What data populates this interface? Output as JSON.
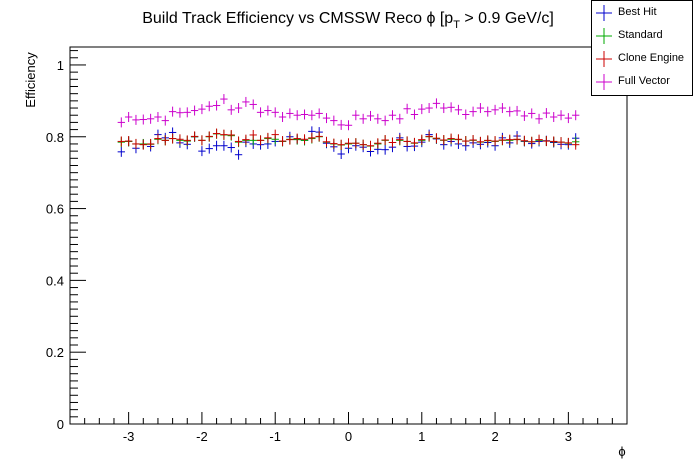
{
  "chart_data": {
    "type": "scatter",
    "title": "Build Track Efficiency vs CMSSW Reco ϕ [p",
    "title_sub": "T",
    "title_suffix": " > 0.9 GeV/c]",
    "xlabel": "ϕ",
    "ylabel": "Efficiency",
    "xlim": [
      -3.8,
      3.8
    ],
    "ylim": [
      0,
      1.05
    ],
    "x_ticks": [
      -3,
      -2,
      -1,
      0,
      1,
      2,
      3
    ],
    "x_tick_labels": [
      "-3",
      "-2",
      "-1",
      "0",
      "1",
      "2",
      "3"
    ],
    "y_ticks": [
      0,
      0.2,
      0.4,
      0.6,
      0.8,
      1
    ],
    "y_tick_labels": [
      "0",
      "0.2",
      "0.4",
      "0.6",
      "0.8",
      "1"
    ],
    "grid": false,
    "legend_position": "top-right",
    "x": [
      -3.1,
      -3.0,
      -2.9,
      -2.8,
      -2.7,
      -2.6,
      -2.5,
      -2.4,
      -2.3,
      -2.2,
      -2.1,
      -2.0,
      -1.9,
      -1.8,
      -1.7,
      -1.6,
      -1.5,
      -1.4,
      -1.3,
      -1.2,
      -1.1,
      -1.0,
      -0.9,
      -0.8,
      -0.7,
      -0.6,
      -0.5,
      -0.4,
      -0.3,
      -0.2,
      -0.1,
      0.0,
      0.1,
      0.2,
      0.3,
      0.4,
      0.5,
      0.6,
      0.7,
      0.8,
      0.9,
      1.0,
      1.1,
      1.2,
      1.3,
      1.4,
      1.5,
      1.6,
      1.7,
      1.8,
      1.9,
      2.0,
      2.1,
      2.2,
      2.3,
      2.4,
      2.5,
      2.6,
      2.7,
      2.8,
      2.9,
      3.0,
      3.1
    ],
    "series": [
      {
        "name": "Best Hit",
        "color": "#0000cc",
        "values": [
          0.758,
          0.787,
          0.768,
          0.779,
          0.773,
          0.806,
          0.797,
          0.812,
          0.783,
          0.779,
          0.8,
          0.76,
          0.767,
          0.775,
          0.775,
          0.77,
          0.75,
          0.785,
          0.78,
          0.778,
          0.78,
          0.787,
          0.787,
          0.8,
          0.793,
          0.79,
          0.815,
          0.813,
          0.782,
          0.772,
          0.752,
          0.768,
          0.775,
          0.771,
          0.759,
          0.765,
          0.764,
          0.771,
          0.797,
          0.773,
          0.774,
          0.785,
          0.806,
          0.794,
          0.778,
          0.787,
          0.78,
          0.775,
          0.783,
          0.779,
          0.784,
          0.775,
          0.797,
          0.783,
          0.802,
          0.787,
          0.781,
          0.787,
          0.789,
          0.784,
          0.779,
          0.778,
          0.796
        ]
      },
      {
        "name": "Standard",
        "color": "#00aa00",
        "values": [
          0.785,
          0.787,
          0.78,
          0.78,
          0.779,
          0.793,
          0.79,
          0.795,
          0.79,
          0.788,
          0.8,
          0.79,
          0.8,
          0.808,
          0.805,
          0.803,
          0.785,
          0.79,
          0.79,
          0.79,
          0.795,
          0.793,
          0.787,
          0.793,
          0.792,
          0.79,
          0.795,
          0.8,
          0.785,
          0.78,
          0.777,
          0.78,
          0.782,
          0.778,
          0.774,
          0.78,
          0.79,
          0.784,
          0.79,
          0.787,
          0.782,
          0.79,
          0.8,
          0.795,
          0.79,
          0.793,
          0.792,
          0.788,
          0.79,
          0.785,
          0.789,
          0.787,
          0.79,
          0.79,
          0.792,
          0.788,
          0.786,
          0.79,
          0.788,
          0.786,
          0.785,
          0.782,
          0.786
        ]
      },
      {
        "name": "Clone Engine",
        "color": "#cc0000",
        "values": [
          0.787,
          0.788,
          0.78,
          0.778,
          0.78,
          0.795,
          0.79,
          0.795,
          0.793,
          0.79,
          0.801,
          0.79,
          0.801,
          0.809,
          0.806,
          0.805,
          0.787,
          0.792,
          0.805,
          0.79,
          0.797,
          0.806,
          0.788,
          0.792,
          0.795,
          0.793,
          0.797,
          0.801,
          0.786,
          0.781,
          0.778,
          0.782,
          0.782,
          0.778,
          0.775,
          0.782,
          0.791,
          0.784,
          0.792,
          0.787,
          0.783,
          0.792,
          0.801,
          0.796,
          0.791,
          0.795,
          0.793,
          0.788,
          0.791,
          0.786,
          0.79,
          0.788,
          0.791,
          0.792,
          0.793,
          0.789,
          0.786,
          0.792,
          0.788,
          0.787,
          0.785,
          0.783,
          0.778
        ]
      },
      {
        "name": "Full Vector",
        "color": "#cc00cc",
        "values": [
          0.84,
          0.855,
          0.847,
          0.848,
          0.85,
          0.855,
          0.845,
          0.87,
          0.867,
          0.868,
          0.873,
          0.877,
          0.885,
          0.887,
          0.905,
          0.875,
          0.88,
          0.897,
          0.89,
          0.868,
          0.873,
          0.868,
          0.855,
          0.865,
          0.86,
          0.862,
          0.86,
          0.865,
          0.852,
          0.845,
          0.833,
          0.832,
          0.86,
          0.85,
          0.858,
          0.85,
          0.845,
          0.86,
          0.85,
          0.878,
          0.862,
          0.877,
          0.88,
          0.893,
          0.88,
          0.882,
          0.875,
          0.862,
          0.87,
          0.88,
          0.87,
          0.875,
          0.88,
          0.87,
          0.872,
          0.858,
          0.865,
          0.85,
          0.866,
          0.855,
          0.86,
          0.852,
          0.86
        ]
      }
    ]
  }
}
